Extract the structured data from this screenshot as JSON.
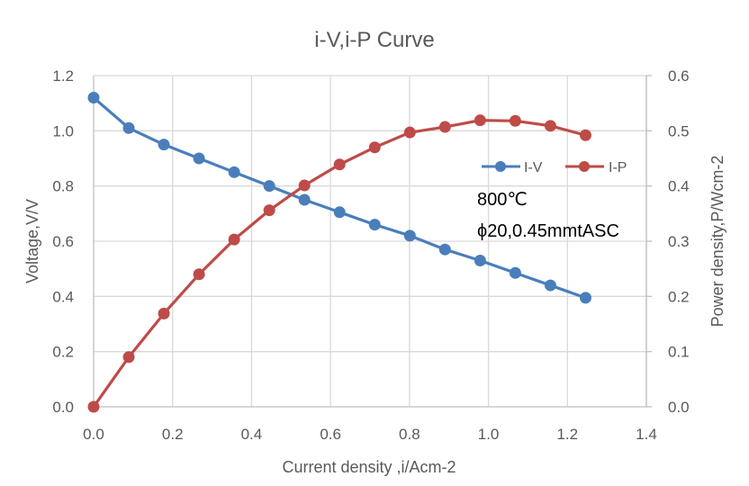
{
  "chart_data": {
    "type": "line",
    "title": "i-V,i-P Curve",
    "xlabel": "Current density ,i/Acm-2",
    "ylabel": "Voltage,V/V",
    "y2label": "Power density,P/Wcm-2",
    "xlim": [
      0,
      1.4
    ],
    "ylim": [
      0,
      1.2
    ],
    "y2lim": [
      0,
      0.6
    ],
    "x_ticks": [
      "0.0",
      "0.2",
      "0.4",
      "0.6",
      "0.8",
      "1.0",
      "1.2",
      "1.4"
    ],
    "y_ticks": [
      "0.0",
      "0.2",
      "0.4",
      "0.6",
      "0.8",
      "1.0",
      "1.2"
    ],
    "y2_ticks": [
      "0.0",
      "0.1",
      "0.2",
      "0.3",
      "0.4",
      "0.5",
      "0.6"
    ],
    "grid": true,
    "legend_position": "top-right",
    "x": [
      0.0,
      0.089,
      0.178,
      0.267,
      0.356,
      0.445,
      0.534,
      0.623,
      0.712,
      0.801,
      0.89,
      0.979,
      1.068,
      1.157,
      1.246
    ],
    "series": [
      {
        "name": "I-V",
        "axis": "left",
        "color": "#4a7ebb",
        "values": [
          1.12,
          1.01,
          0.95,
          0.9,
          0.85,
          0.8,
          0.75,
          0.705,
          0.66,
          0.62,
          0.57,
          0.53,
          0.485,
          0.44,
          0.395
        ]
      },
      {
        "name": "I-P",
        "axis": "right",
        "color": "#be4b48",
        "values": [
          0.0,
          0.09,
          0.169,
          0.24,
          0.303,
          0.356,
          0.401,
          0.439,
          0.47,
          0.497,
          0.507,
          0.519,
          0.518,
          0.509,
          0.492
        ]
      }
    ],
    "annotations": [
      "800℃",
      "ϕ20,0.45mmtASC"
    ]
  }
}
